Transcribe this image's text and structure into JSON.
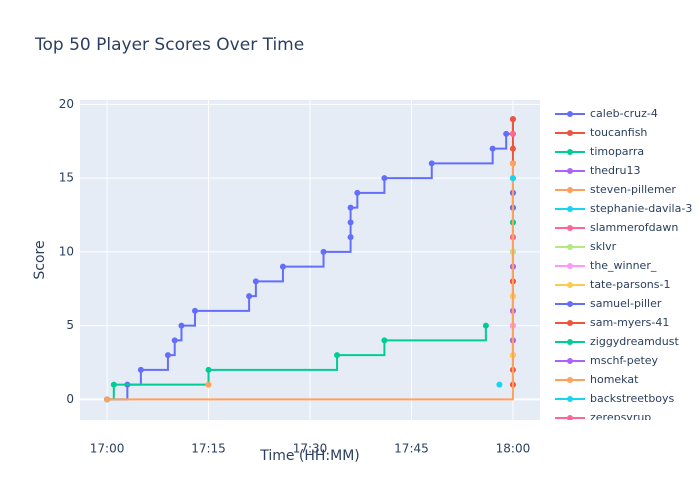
{
  "chart_data": {
    "type": "line",
    "title": "Top 50 Player Scores Over Time",
    "x_label": "Time (HH:MM)",
    "y_label": "Score",
    "xlim": [
      "16:56",
      "18:04"
    ],
    "xticks": [
      "17:00",
      "17:15",
      "17:30",
      "17:45",
      "18:00"
    ],
    "ylim": [
      -1.4,
      20.3
    ],
    "yticks": [
      0,
      5,
      10,
      15,
      20
    ],
    "grid": true,
    "line_shape": "hv",
    "legend": "right",
    "series": [
      {
        "name": "caleb-cruz-4",
        "color": "#636efa",
        "x": [
          "17:00",
          "17:03",
          "17:05",
          "17:09",
          "17:10",
          "17:11",
          "17:13",
          "17:21",
          "17:22",
          "17:26",
          "17:32",
          "17:36",
          "17:36",
          "17:36",
          "17:37",
          "17:41",
          "17:48",
          "17:57",
          "17:59",
          "18:00"
        ],
        "values": [
          0,
          1,
          2,
          3,
          4,
          5,
          6,
          7,
          8,
          9,
          10,
          11,
          12,
          13,
          14,
          15,
          16,
          17,
          18,
          19
        ]
      },
      {
        "name": "toucanfish",
        "color": "#EF553B",
        "x": [
          "18:00",
          "18:00",
          "18:00",
          "18:00",
          "18:00",
          "18:00",
          "18:00",
          "18:00",
          "18:00",
          "18:00",
          "18:00",
          "18:00",
          "18:00",
          "18:00",
          "18:00",
          "18:00",
          "18:00",
          "18:00",
          "18:00"
        ],
        "values": [
          1,
          2,
          3,
          4,
          5,
          6,
          7,
          8,
          9,
          10,
          11,
          12,
          13,
          14,
          15,
          16,
          17,
          18,
          19
        ]
      },
      {
        "name": "timoparra",
        "color": "#00cc96",
        "x": [
          "17:00",
          "17:01",
          "17:15",
          "17:34",
          "17:41",
          "17:56"
        ],
        "values": [
          0,
          1,
          2,
          3,
          4,
          5
        ]
      },
      {
        "name": "thedru13",
        "color": "#ab63fa",
        "x": [
          "18:00",
          "18:00"
        ],
        "values": [
          6,
          9
        ]
      },
      {
        "name": "steven-pillemer",
        "color": "#FFA15A",
        "x": [
          "17:15"
        ],
        "values": [
          1
        ]
      },
      {
        "name": "stephanie-davila-3",
        "color": "#19d3f3",
        "x": [
          "17:58"
        ],
        "values": [
          1
        ]
      },
      {
        "name": "slammerofdawn",
        "color": "#FF6692",
        "x": [
          "18:00"
        ],
        "values": [
          11
        ]
      },
      {
        "name": "sklvr",
        "color": "#B6E880",
        "x": [
          "18:00"
        ],
        "values": [
          10
        ]
      },
      {
        "name": "the_winner_",
        "color": "#FF97FF",
        "x": [
          "18:00"
        ],
        "values": [
          5
        ]
      },
      {
        "name": "tate-parsons-1",
        "color": "#FECB52",
        "x": [
          "18:00",
          "18:00"
        ],
        "values": [
          3,
          7
        ]
      },
      {
        "name": "samuel-piller",
        "color": "#636efa",
        "x": [
          "18:00",
          "18:00"
        ],
        "values": [
          13,
          14
        ]
      },
      {
        "name": "sam-myers-41",
        "color": "#EF553B",
        "x": [
          "18:00"
        ],
        "values": [
          8
        ]
      },
      {
        "name": "ziggydreamdust",
        "color": "#00cc96",
        "x": [
          "18:00"
        ],
        "values": [
          12
        ]
      },
      {
        "name": "mschf-petey",
        "color": "#ab63fa",
        "x": [
          "18:00"
        ],
        "values": [
          4
        ]
      },
      {
        "name": "homekat",
        "color": "#FFA15A",
        "x": [
          "17:00",
          "18:00"
        ],
        "values": [
          0,
          16
        ]
      },
      {
        "name": "backstreetboys",
        "color": "#19d3f3",
        "x": [
          "18:00"
        ],
        "values": [
          15
        ]
      },
      {
        "name": "zerepsyrup",
        "color": "#FF6692",
        "x": [
          "18:00"
        ],
        "values": [
          18
        ]
      }
    ]
  }
}
